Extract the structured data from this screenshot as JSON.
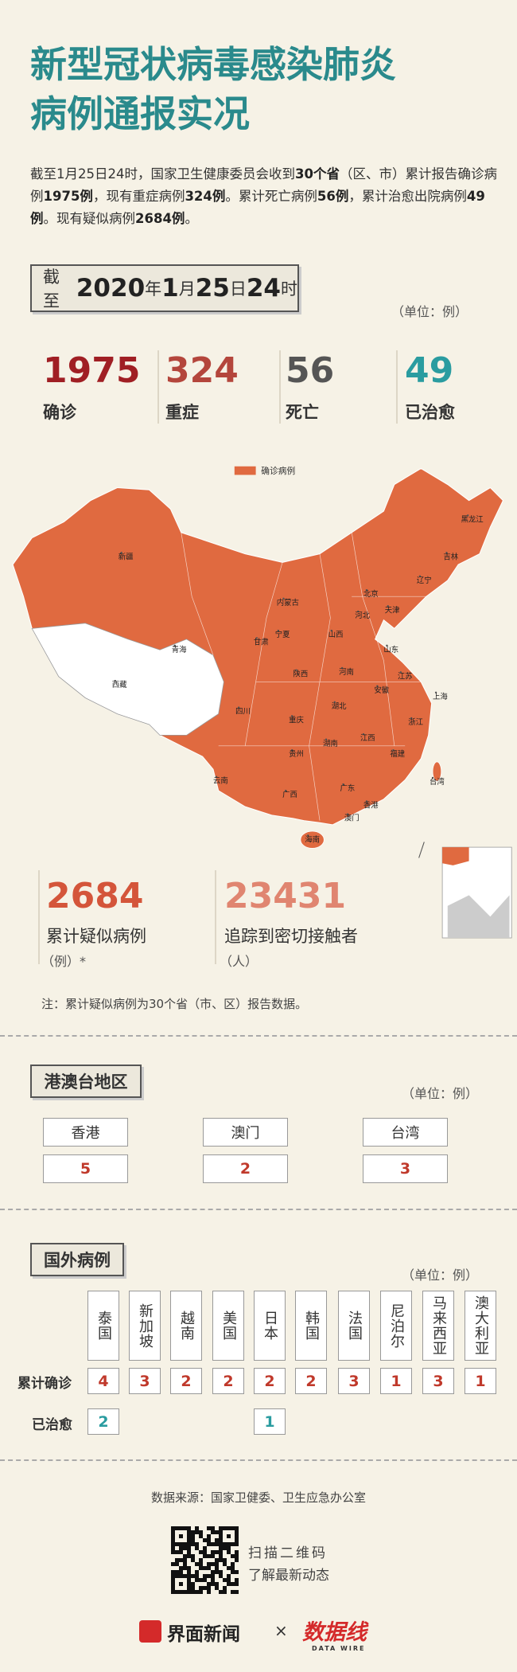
{
  "header": {
    "title_lines": [
      "新型冠状病毒感染肺炎",
      "病例通报实况"
    ],
    "intro": [
      {
        "text": "截至1月25日24时，国家卫生健康委员会收到",
        "bold": false
      },
      {
        "text": "30个省",
        "bold": true
      },
      {
        "text": "（区、市）累计报告确诊病例",
        "bold": false
      },
      {
        "text": "1975例",
        "bold": true
      },
      {
        "text": "，现有重症病例",
        "bold": false
      },
      {
        "text": "324例",
        "bold": true
      },
      {
        "text": "。累计死亡病例",
        "bold": false
      },
      {
        "text": "56例",
        "bold": true
      },
      {
        "text": "，累计治愈出院病例",
        "bold": false
      },
      {
        "text": "49例",
        "bold": true
      },
      {
        "text": "。现有疑似病例",
        "bold": false
      },
      {
        "text": "2684例",
        "bold": true
      },
      {
        "text": "。",
        "bold": false
      }
    ]
  },
  "date_box": [
    {
      "text": "截至",
      "big": false
    },
    {
      "text": "2020",
      "big": true
    },
    {
      "text": "年",
      "big": false
    },
    {
      "text": "1",
      "big": true
    },
    {
      "text": "月",
      "big": false
    },
    {
      "text": "25",
      "big": true
    },
    {
      "text": "日",
      "big": false
    },
    {
      "text": "24",
      "big": true
    },
    {
      "text": "时",
      "big": false
    }
  ],
  "unit_label": "（单位：例）",
  "stats": [
    {
      "value": 1975,
      "label": "确诊",
      "color": "#a01f24"
    },
    {
      "value": 324,
      "label": "重症",
      "color": "#b4463c"
    },
    {
      "value": 56,
      "label": "死亡",
      "color": "#555555"
    },
    {
      "value": 49,
      "label": "已治愈",
      "color": "#2a9ca0"
    }
  ],
  "map": {
    "legend": "确诊病例",
    "color": "#e06a40",
    "labels": [
      "新疆",
      "西藏",
      "青海",
      "甘肃",
      "内蒙古",
      "宁夏",
      "陕西",
      "四川",
      "重庆",
      "云南",
      "贵州",
      "广西",
      "湖南",
      "湖北",
      "河南",
      "山西",
      "河北",
      "北京",
      "天津",
      "山东",
      "江苏",
      "安徽",
      "上海",
      "浙江",
      "江西",
      "福建",
      "台湾",
      "广东",
      "香港",
      "澳门",
      "海南",
      "辽宁",
      "吉林",
      "黑龙江"
    ]
  },
  "stats2": [
    {
      "value": 2684,
      "label": "累计疑似病例",
      "unit": "（例）*",
      "color": "#d4553a"
    },
    {
      "value": 23431,
      "label": "追踪到密切接触者",
      "unit": "（人）",
      "color": "#e08570"
    }
  ],
  "note": "注：累计疑似病例为30个省（市、区）报告数据。",
  "hkmt": {
    "title": "港澳台地区",
    "unit": "（单位：例）",
    "items": [
      {
        "name": "香港",
        "value": 5
      },
      {
        "name": "澳门",
        "value": 2
      },
      {
        "name": "台湾",
        "value": 3
      }
    ]
  },
  "foreign": {
    "title": "国外病例",
    "unit": "（单位：例）",
    "row_labels": [
      "累计确诊",
      "已治愈"
    ],
    "countries": [
      "泰国",
      "新加坡",
      "越南",
      "美国",
      "日本",
      "韩国",
      "法国",
      "尼泊尔",
      "马来西亚",
      "澳大利亚"
    ],
    "confirmed": [
      4,
      3,
      2,
      2,
      2,
      2,
      3,
      1,
      3,
      1
    ],
    "recovered": [
      2,
      null,
      null,
      null,
      1,
      null,
      null,
      null,
      null,
      null
    ]
  },
  "footer": {
    "source": "数据来源：国家卫健委、卫生应急办公室",
    "qr_text": [
      "扫描二维码",
      "了解最新动态"
    ],
    "brand": "界面新闻",
    "times": "×",
    "partner": "数据线",
    "partner_sub": "DATA WIRE"
  }
}
